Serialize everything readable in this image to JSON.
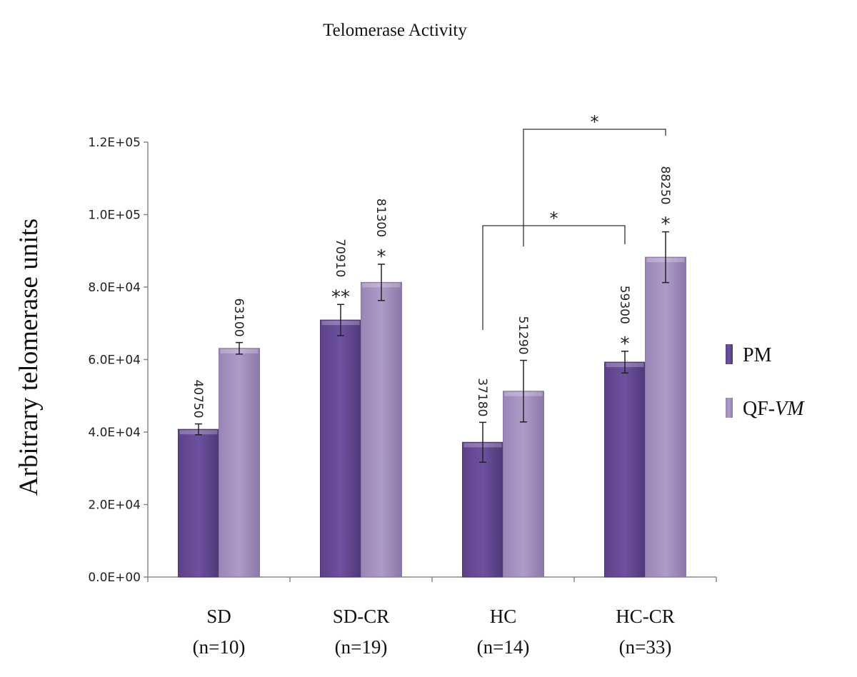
{
  "chart_data": {
    "type": "bar",
    "title": "Telomerase Activity",
    "xlabel": "",
    "ylabel": "Arbitrary telomerase units",
    "ylim": [
      0,
      120000
    ],
    "yticks": [
      "0.0E+00",
      "2.0E+04",
      "4.0E+04",
      "6.0E+04",
      "8.0E+04",
      "1.0E+05",
      "1.2E+05"
    ],
    "grid": false,
    "legend_position": "right",
    "categories": [
      "SD",
      "SD-CR",
      "HC",
      "HC-CR"
    ],
    "category_n": [
      "(n=10)",
      "(n=19)",
      "(n=14)",
      "(n=33)"
    ],
    "series": [
      {
        "name": "PM",
        "color": "#654a93",
        "values": [
          40750,
          70910,
          37180,
          59300
        ],
        "errors": [
          1500,
          4300,
          5500,
          3000
        ],
        "labels": [
          "40750",
          "70910",
          "37180",
          "59300"
        ],
        "marks": [
          "",
          "**",
          "",
          "*"
        ]
      },
      {
        "name": "QF-VM",
        "name_plain": "QF-",
        "name_italic": "VM",
        "color": "#a591bf",
        "values": [
          63100,
          81300,
          51290,
          88250
        ],
        "errors": [
          1600,
          5000,
          8500,
          7000
        ],
        "labels": [
          "63100",
          "81300",
          "51290",
          "88250"
        ],
        "marks": [
          "",
          "*",
          "",
          "*"
        ]
      }
    ],
    "comparisons": [
      {
        "from": "HC PM",
        "to": "HC-CR PM",
        "mark": "*"
      },
      {
        "from": "HC QF-VM",
        "to": "HC-CR QF-VM",
        "mark": "*"
      }
    ]
  }
}
